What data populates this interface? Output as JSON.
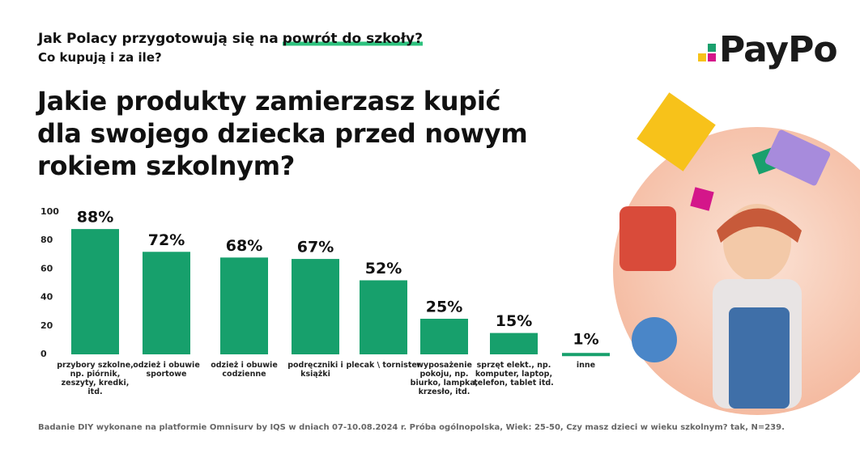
{
  "chart_data": {
    "type": "bar",
    "title_parts": [
      "Jak Polacy przygotowują się na",
      "powrót do szkoły?"
    ],
    "subtitle": "Co kupują i za ile?",
    "question_lines": [
      "Jakie produkty zamierzasz kupić",
      "dla swojego dziecka przed nowym",
      "rokiem szkolnym?"
    ],
    "logo": "PayPo",
    "categories": [
      "przybory szkolne, np. piórnik, zeszyty, kredki, itd.",
      "odzież i obuwie sportowe",
      "odzież i obuwie codzienne",
      "podręczniki i książki",
      "plecak \\ tornister",
      "wyposażenie pokoju, np. biurko, lampka, krzesło, itd.",
      "sprzęt elekt., np. komputer, laptop, telefon, tablet itd.",
      "inne"
    ],
    "values": [
      88,
      72,
      68,
      67,
      52,
      25,
      15,
      1
    ],
    "value_labels": [
      "88%",
      "72%",
      "68%",
      "67%",
      "52%",
      "25%",
      "15%",
      "1%"
    ],
    "color": "#17a06c",
    "ylim": [
      0,
      100
    ],
    "yticks": [
      0,
      20,
      40,
      60,
      80,
      100
    ],
    "grid": false,
    "footnote": "Badanie DIY wykonane na platformie Omnisurv by IQS w dniach 07-10.08.2024 r. Próba ogólnopolska, Wiek: 25-50, Czy masz dzieci w wieku szkolnym?  tak, N=239."
  }
}
